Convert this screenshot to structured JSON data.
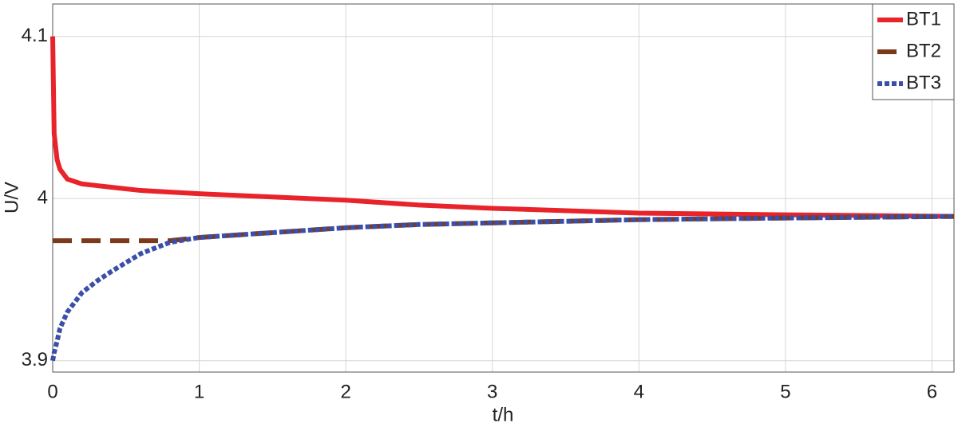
{
  "chart_data": {
    "type": "line",
    "x_label": "t/h",
    "y_label": "U/V",
    "x": [
      0,
      0.01,
      0.03,
      0.05,
      0.1,
      0.2,
      0.3,
      0.4,
      0.6,
      0.8,
      1,
      1.5,
      2,
      2.5,
      3,
      4,
      5,
      6.15
    ],
    "series": [
      {
        "name": "BT1",
        "color": "#e8232a",
        "dash": "solid",
        "values": [
          4.1,
          4.04,
          4.024,
          4.018,
          4.012,
          4.009,
          4.008,
          4.007,
          4.005,
          4.004,
          4.003,
          4.001,
          3.999,
          3.996,
          3.994,
          3.991,
          3.99,
          3.989
        ]
      },
      {
        "name": "BT2",
        "color": "#7b3a1c",
        "dash": "dashed",
        "values": [
          3.974,
          3.974,
          3.974,
          3.974,
          3.974,
          3.974,
          3.974,
          3.974,
          3.974,
          3.974,
          3.976,
          3.979,
          3.982,
          3.984,
          3.985,
          3.987,
          3.988,
          3.989
        ]
      },
      {
        "name": "BT3",
        "color": "#3b4fa8",
        "dash": "dotted",
        "values": [
          3.9,
          3.905,
          3.912,
          3.92,
          3.93,
          3.942,
          3.949,
          3.955,
          3.966,
          3.973,
          3.976,
          3.979,
          3.982,
          3.984,
          3.985,
          3.987,
          3.988,
          3.989
        ]
      }
    ],
    "xlim": [
      0,
      6.15
    ],
    "ylim": [
      3.893,
      4.12
    ],
    "xticks": [
      0,
      1,
      2,
      3,
      4,
      5,
      6
    ],
    "yticks": [
      3.9,
      4,
      4.1
    ],
    "grid": true,
    "legend": "top-right"
  }
}
